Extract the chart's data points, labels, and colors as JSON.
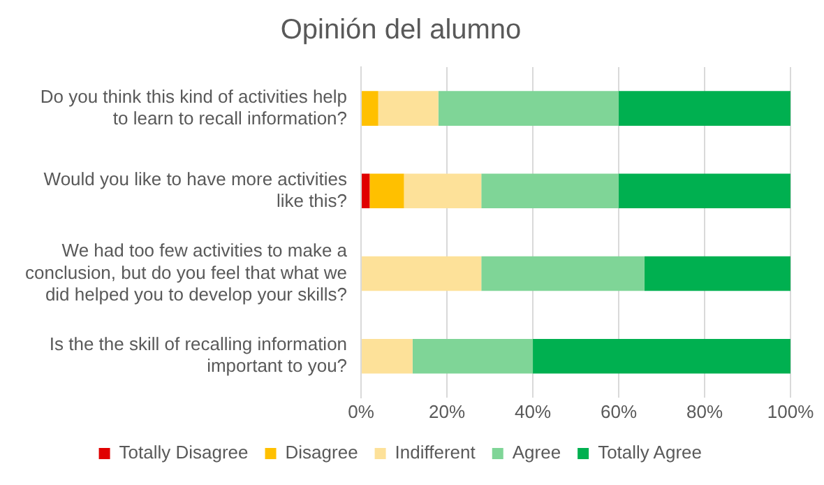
{
  "chart_data": {
    "type": "bar",
    "title": "Opinión del alumno",
    "orientation": "horizontal",
    "stacked": true,
    "categories": [
      "Do you think this kind of activities help to learn to recall information?",
      "Would you like to have more activities like this?",
      "We had too few activities to make a conclusion, but do you feel that what we did helped you to develop your skills?",
      "Is the the skill of recalling information important to you?"
    ],
    "series": [
      {
        "name": "Totally Disagree",
        "color": "#e00000",
        "values": [
          0,
          2,
          0,
          0
        ]
      },
      {
        "name": "Disagree",
        "color": "#ffc000",
        "values": [
          4,
          8,
          0,
          0
        ]
      },
      {
        "name": "Indifferent",
        "color": "#fde199",
        "values": [
          14,
          18,
          28,
          12
        ]
      },
      {
        "name": "Agree",
        "color": "#7fd597",
        "values": [
          42,
          32,
          38,
          28
        ]
      },
      {
        "name": "Totally Agree",
        "color": "#00b050",
        "values": [
          40,
          40,
          34,
          60
        ]
      }
    ],
    "xlim": [
      0,
      100
    ],
    "xticks": [
      {
        "value": 0,
        "label": "0%"
      },
      {
        "value": 20,
        "label": "20%"
      },
      {
        "value": 40,
        "label": "40%"
      },
      {
        "value": 60,
        "label": "60%"
      },
      {
        "value": 80,
        "label": "80%"
      },
      {
        "value": 100,
        "label": "100%"
      }
    ],
    "grid": "x",
    "legend": "bottom"
  }
}
